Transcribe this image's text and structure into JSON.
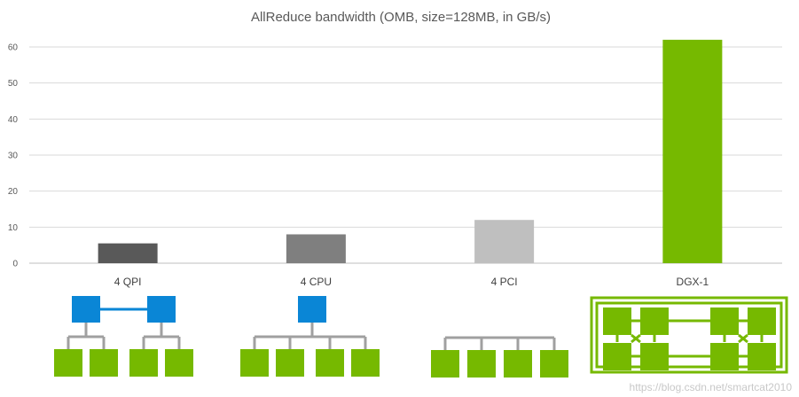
{
  "chart_data": {
    "type": "bar",
    "title": "AllReduce bandwidth (OMB, size=128MB, in GB/s)",
    "xlabel": "",
    "ylabel": "",
    "categories": [
      "4 QPI",
      "4 CPU",
      "4 PCI",
      "DGX-1"
    ],
    "values": [
      5.5,
      8,
      12,
      62
    ],
    "bar_colors": [
      "#595959",
      "#7f7f7f",
      "#bfbfbf",
      "#76b900"
    ],
    "ylim": [
      0,
      65
    ],
    "yticks": [
      0,
      10,
      20,
      30,
      40,
      50,
      60
    ],
    "grid": true,
    "legend": "none"
  },
  "colors": {
    "gpu": "#76b900",
    "cpu": "#0a86d6",
    "link_gray": "#a0a0a0",
    "link_blue": "#0a86d6"
  },
  "watermark": "https://blog.csdn.net/smartcat2010"
}
